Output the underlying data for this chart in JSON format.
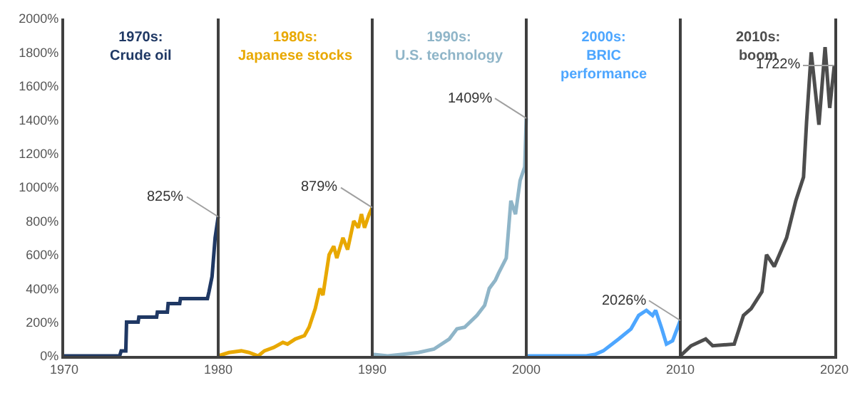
{
  "chart_data": {
    "type": "line",
    "xlim": [
      1970,
      2020
    ],
    "ylim": [
      0,
      2000
    ],
    "xticks": [
      1970,
      1980,
      1990,
      2000,
      2010,
      2020
    ],
    "yticks": [
      {
        "value": 0,
        "label": "0%"
      },
      {
        "value": 200,
        "label": "200%"
      },
      {
        "value": 400,
        "label": "400%"
      },
      {
        "value": 600,
        "label": "600%"
      },
      {
        "value": 800,
        "label": "800%"
      },
      {
        "value": 1000,
        "label": "1000%"
      },
      {
        "value": 1200,
        "label": "1200%"
      },
      {
        "value": 1400,
        "label": "1400%"
      },
      {
        "value": 1600,
        "label": "1600%"
      },
      {
        "value": 1800,
        "label": "1800%"
      },
      {
        "value": 2000,
        "label": "2000%"
      }
    ],
    "legend": false,
    "marker": "none",
    "line_style": "solid",
    "series": [
      {
        "name": "1970s:\nCrude oil",
        "color": "#1f3864",
        "x": [
          1970,
          1973.6,
          1973.7,
          1974.0,
          1974.05,
          1974.8,
          1974.85,
          1976.0,
          1976.05,
          1976.7,
          1976.75,
          1977.5,
          1977.55,
          1979.3,
          1979.4,
          1979.6,
          1979.8,
          1980
        ],
        "values": [
          0,
          0,
          30,
          30,
          200,
          200,
          230,
          230,
          260,
          260,
          310,
          310,
          340,
          340,
          380,
          470,
          700,
          825
        ]
      },
      {
        "name": "1980s:\nJapanese stocks",
        "color": "#e8a800",
        "x": [
          1980,
          1980.7,
          1981.5,
          1982,
          1982.6,
          1983,
          1983.6,
          1984.2,
          1984.5,
          1985,
          1985.6,
          1985.9,
          1986.3,
          1986.6,
          1986.8,
          1987.2,
          1987.5,
          1987.7,
          1988.1,
          1988.4,
          1988.8,
          1989.1,
          1989.3,
          1989.5,
          1989.8,
          1990
        ],
        "values": [
          0,
          20,
          30,
          20,
          0,
          30,
          50,
          80,
          70,
          100,
          120,
          170,
          280,
          400,
          360,
          600,
          650,
          580,
          700,
          630,
          800,
          760,
          840,
          760,
          840,
          879
        ]
      },
      {
        "name": "1990s:\nU.S. technology",
        "color": "#8fb5c8",
        "x": [
          1990,
          1991,
          1992,
          1993,
          1994,
          1995,
          1995.5,
          1996,
          1996.8,
          1997.3,
          1997.6,
          1998,
          1998.2,
          1998.7,
          1999,
          1999.3,
          1999.6,
          1999.9,
          2000
        ],
        "values": [
          10,
          0,
          10,
          20,
          40,
          100,
          160,
          170,
          240,
          300,
          400,
          450,
          490,
          580,
          920,
          840,
          1040,
          1120,
          1409
        ]
      },
      {
        "name": "2000s:\nBRIC\nperformance",
        "color": "#4da6ff",
        "x": [
          2000,
          2003.9,
          2004.5,
          2005,
          2006,
          2006.8,
          2007.3,
          2007.8,
          2008.2,
          2008.4,
          2008.8,
          2009.1,
          2009.5,
          2010
        ],
        "values": [
          0,
          0,
          10,
          30,
          100,
          160,
          240,
          270,
          240,
          270,
          160,
          70,
          90,
          210
        ]
      },
      {
        "name": "2010s:\nboom",
        "color": "#4d4d4d",
        "x": [
          2010,
          2010.7,
          2011.65,
          2012.1,
          2013.5,
          2014.1,
          2014.6,
          2015.3,
          2015.6,
          2016.1,
          2016.9,
          2017.5,
          2018,
          2018.2,
          2018.5,
          2019,
          2019.4,
          2019.7,
          2020
        ],
        "values": [
          0,
          60,
          100,
          60,
          70,
          240,
          280,
          380,
          600,
          530,
          700,
          920,
          1060,
          1390,
          1800,
          1370,
          1830,
          1470,
          1722
        ]
      }
    ],
    "ref_lines": [
      {
        "axis": "x",
        "value": 1980,
        "color": "#404040"
      },
      {
        "axis": "x",
        "value": 1990,
        "color": "#404040"
      },
      {
        "axis": "x",
        "value": 2000,
        "color": "#404040"
      },
      {
        "axis": "x",
        "value": 2010,
        "color": "#404040"
      }
    ],
    "annotations": [
      {
        "text": "825%",
        "x": 1980,
        "y": 825
      },
      {
        "text": "879%",
        "x": 1990,
        "y": 879
      },
      {
        "text": "1409%",
        "x": 2000,
        "y": 1409
      },
      {
        "text": "2026%",
        "x": 2010,
        "y": 210
      },
      {
        "text": "1722%",
        "x": 2020,
        "y": 1722
      }
    ]
  }
}
